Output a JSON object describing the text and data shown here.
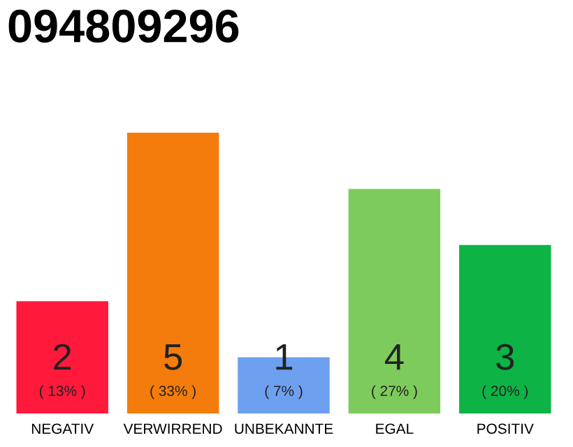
{
  "chart_data": {
    "type": "bar",
    "title": "094809296",
    "categories": [
      "NEGATIV",
      "VERWIRREND",
      "UNBEKANNTE",
      "EGAL",
      "POSITIV"
    ],
    "values": [
      2,
      5,
      1,
      4,
      3
    ],
    "colors": [
      "#ff1a3c",
      "#f47c0c",
      "#6ea0f0",
      "#7ecb5d",
      "#0db345"
    ],
    "value_labels": [
      "2\n( 13% )",
      "5\n( 33% )",
      "1\n( 7% )",
      "4\n( 27% )",
      "3\n( 20% )"
    ],
    "ylim": [
      0,
      5
    ],
    "tick_labels": "x",
    "grid": false,
    "legend": false
  }
}
